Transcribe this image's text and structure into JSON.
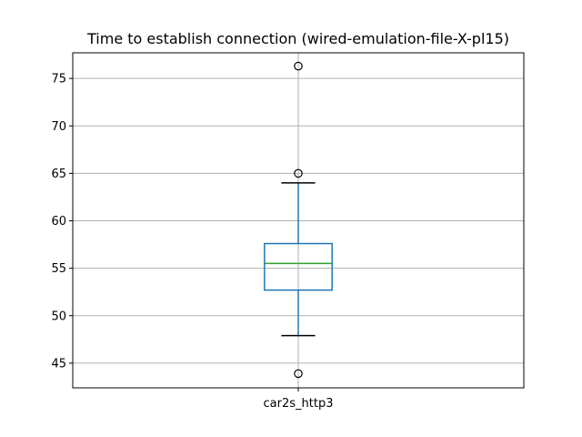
{
  "chart_data": {
    "type": "box",
    "title": "Time to establish connection (wired-emulation-file-X-pl15)",
    "xlabel": "",
    "ylabel": "",
    "ylim": [
      42.4,
      77.7
    ],
    "yticks": [
      45,
      50,
      55,
      60,
      65,
      70,
      75
    ],
    "grid": true,
    "categories": [
      "car2s_http3"
    ],
    "boxes": [
      {
        "name": "car2s_http3",
        "whisker_low": 47.9,
        "q1": 52.7,
        "median": 55.5,
        "q3": 57.6,
        "whisker_high": 64.0,
        "outliers": [
          76.3,
          65.0,
          43.9
        ]
      }
    ],
    "colors": {
      "box": "#1f77b4",
      "median": "#2ca02c",
      "whisker_cap": "#000000",
      "grid": "#b0b0b0"
    }
  }
}
